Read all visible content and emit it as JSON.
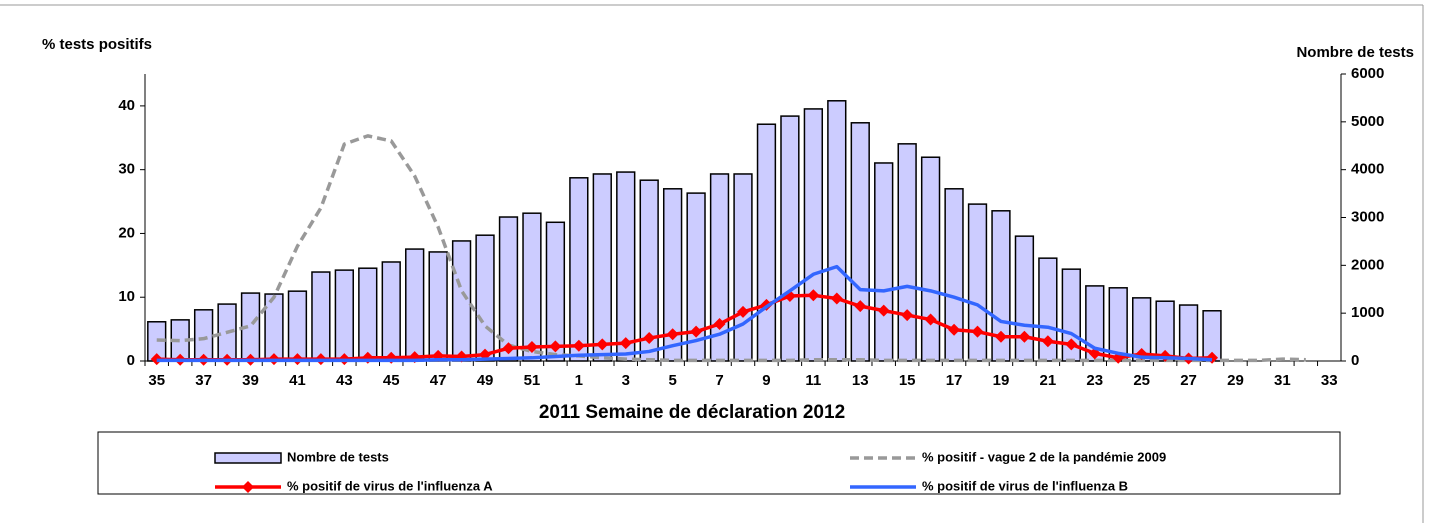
{
  "chart_data": {
    "type": "bar_line",
    "y_label": "% tests positifs",
    "y2_label": "Nombre de tests",
    "x_label": "2011  Semaine de déclaration   2012",
    "categories": [
      "35",
      null,
      "37",
      null,
      "39",
      null,
      "41",
      null,
      "43",
      null,
      "45",
      null,
      "47",
      null,
      "49",
      null,
      "51",
      null,
      "1",
      null,
      "3",
      null,
      "5",
      null,
      "7",
      null,
      "9",
      null,
      "11",
      null,
      "13",
      null,
      "15",
      null,
      "17",
      null,
      "19",
      null,
      "21",
      null,
      "23",
      null,
      "25",
      null,
      "27",
      null,
      "29",
      null,
      "31",
      null,
      "33"
    ],
    "ylim": [
      0,
      45
    ],
    "yticks": [
      0,
      10,
      20,
      30,
      40
    ],
    "y2lim": [
      0,
      6000
    ],
    "y2ticks": [
      0,
      1000,
      2000,
      3000,
      4000,
      5000,
      6000
    ],
    "series": [
      {
        "name": "Nombre de tests",
        "type": "bar",
        "axis": "y2",
        "color": "#ccccff",
        "values": [
          820,
          860,
          1070,
          1190,
          1420,
          1400,
          1460,
          1860,
          1900,
          1940,
          2070,
          2340,
          2280,
          2510,
          2630,
          3010,
          3090,
          2900,
          3830,
          3910,
          3950,
          3780,
          3600,
          3510,
          3910,
          3910,
          4950,
          5120,
          5270,
          5440,
          4980,
          4140,
          4540,
          4260,
          3600,
          3280,
          3140,
          2610,
          2150,
          1920,
          1570,
          1530,
          1320,
          1250,
          1170,
          1050,
          null,
          null,
          null,
          null,
          null
        ]
      },
      {
        "name": "% positif - vague 2 de la pandémie 2009",
        "type": "line",
        "style": "dashed",
        "color": "#999999",
        "values": [
          3.3,
          3.2,
          3.5,
          4.5,
          5.5,
          10,
          18,
          24,
          34,
          35.3,
          34.5,
          29,
          21,
          11,
          5.5,
          2.5,
          1.5,
          1,
          0.8,
          0.5,
          0.3,
          0.2,
          0.1,
          0.1,
          0.1,
          0.1,
          0.1,
          0.1,
          0.2,
          0.2,
          0.2,
          0.1,
          0.1,
          0.1,
          0.1,
          0.1,
          0.1,
          0.1,
          0.1,
          0.1,
          0.1,
          0.1,
          0.1,
          0.1,
          0.1,
          0.1,
          0.1,
          0.1,
          0.3,
          0.2,
          null
        ]
      },
      {
        "name": "% positif de virus de l'influenza A",
        "type": "line",
        "style": "solid",
        "marker": "diamond",
        "color": "#ff0000",
        "values": [
          0.3,
          0.2,
          0.2,
          0.2,
          0.2,
          0.3,
          0.3,
          0.3,
          0.3,
          0.5,
          0.5,
          0.6,
          0.8,
          0.7,
          1.0,
          2.0,
          2.2,
          2.3,
          2.4,
          2.6,
          2.8,
          3.6,
          4.2,
          4.6,
          5.8,
          7.7,
          8.8,
          10.2,
          10.3,
          9.8,
          8.6,
          7.9,
          7.2,
          6.5,
          4.9,
          4.6,
          3.8,
          3.8,
          3.1,
          2.6,
          1.2,
          0.5,
          1.1,
          0.8,
          0.4,
          0.5,
          null,
          null,
          null,
          null,
          null
        ]
      },
      {
        "name": "% positif de virus de l'influenza B",
        "type": "line",
        "style": "solid",
        "color": "#3366ff",
        "values": [
          0.1,
          0.1,
          0.1,
          0.1,
          0.1,
          0.1,
          0.1,
          0.1,
          0.1,
          0.1,
          0.1,
          0.1,
          0.2,
          0.2,
          0.3,
          0.4,
          0.5,
          0.7,
          0.9,
          1.0,
          1.1,
          1.5,
          2.4,
          3.2,
          4.2,
          5.8,
          8.5,
          11,
          13.6,
          14.8,
          11.2,
          11,
          11.7,
          11,
          10,
          8.8,
          6.2,
          5.6,
          5.3,
          4.3,
          2,
          1.2,
          0.6,
          0.5,
          0.4,
          0.2,
          null,
          null,
          null,
          null,
          null
        ]
      }
    ]
  }
}
